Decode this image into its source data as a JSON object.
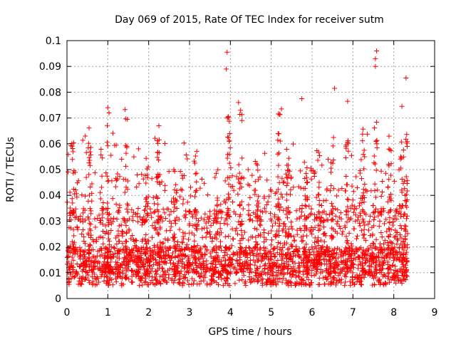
{
  "chart_data": {
    "type": "scatter",
    "title": "Day 069 of 2015, Rate Of TEC Index for receiver sutm",
    "xlabel": "GPS time / hours",
    "ylabel": "ROTI / TECUs",
    "xlim": [
      0,
      9
    ],
    "ylim": [
      0,
      0.1
    ],
    "xticks": [
      "0",
      "1",
      "2",
      "3",
      "4",
      "5",
      "6",
      "7",
      "8",
      "9"
    ],
    "yticks": [
      "0",
      "0.01",
      "0.02",
      "0.03",
      "0.04",
      "0.05",
      "0.06",
      "0.07",
      "0.08",
      "0.09",
      "0.1"
    ],
    "grid": true,
    "marker": "+",
    "color": "#ff0000",
    "x_range_of_data": [
      0,
      8.33
    ],
    "notable_points": [
      {
        "x": 1.0,
        "y": 0.074
      },
      {
        "x": 1.03,
        "y": 0.072
      },
      {
        "x": 2.25,
        "y": 0.067
      },
      {
        "x": 3.92,
        "y": 0.0955
      },
      {
        "x": 3.9,
        "y": 0.089
      },
      {
        "x": 4.2,
        "y": 0.076
      },
      {
        "x": 4.25,
        "y": 0.073
      },
      {
        "x": 5.25,
        "y": 0.0735
      },
      {
        "x": 5.75,
        "y": 0.0775
      },
      {
        "x": 6.55,
        "y": 0.0815
      },
      {
        "x": 6.87,
        "y": 0.0765
      },
      {
        "x": 7.58,
        "y": 0.096
      },
      {
        "x": 7.55,
        "y": 0.093
      },
      {
        "x": 7.55,
        "y": 0.09
      },
      {
        "x": 8.2,
        "y": 0.0745
      },
      {
        "x": 8.3,
        "y": 0.0855
      }
    ]
  }
}
